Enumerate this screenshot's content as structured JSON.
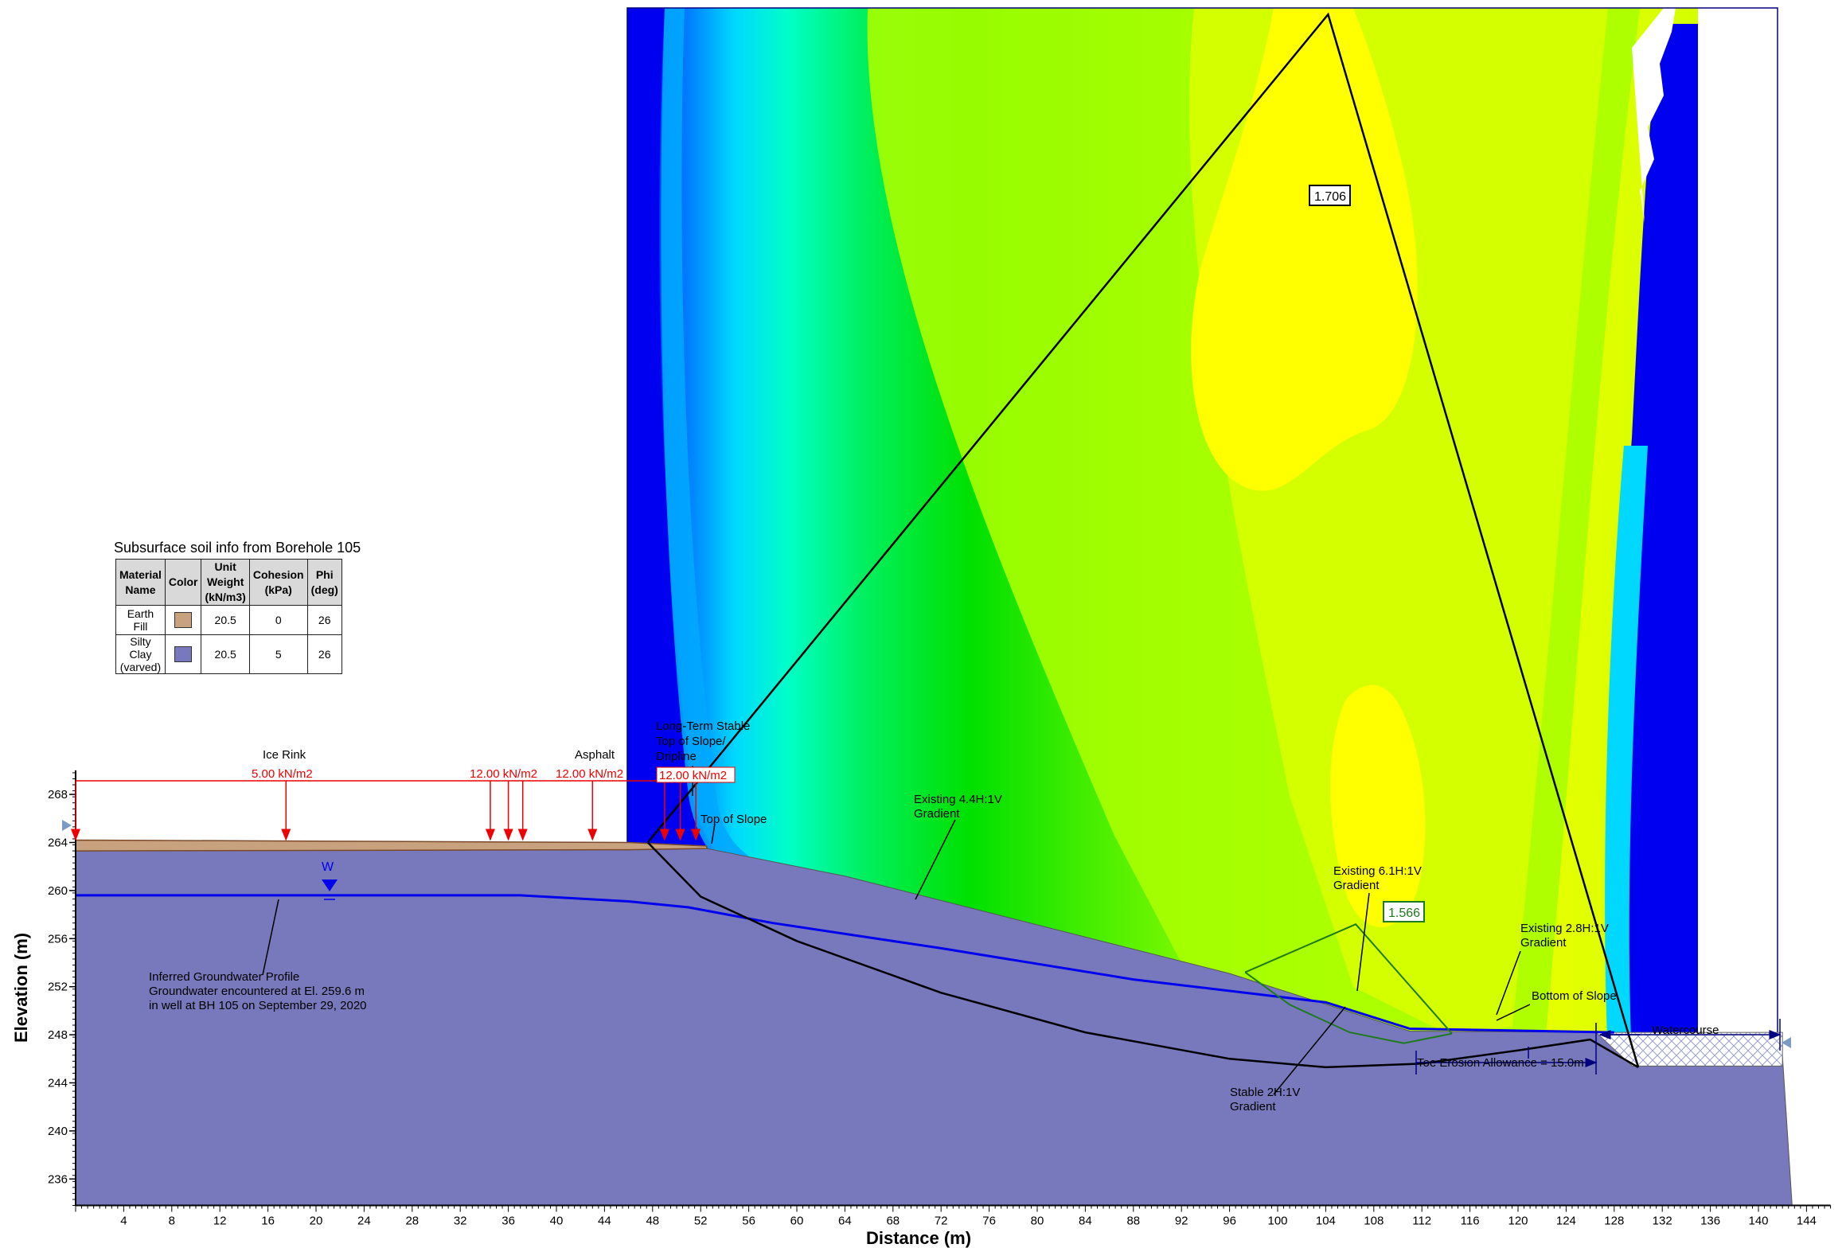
{
  "legend": {
    "title": "Subsurface soil info from Borehole 105",
    "headers": [
      "Material Name",
      "Color",
      "Unit Weight (kN/m3)",
      "Cohesion (kPa)",
      "Phi (deg)"
    ],
    "rows": [
      {
        "name": "Earth Fill",
        "color": "#c8a27e",
        "unit_weight": "20.5",
        "cohesion": "0",
        "phi": "26"
      },
      {
        "name": "Silty Clay (varved)",
        "color": "#7878bc",
        "unit_weight": "20.5",
        "cohesion": "5",
        "phi": "26"
      }
    ]
  },
  "axes": {
    "xlabel": "Distance (m)",
    "ylabel": "Elevation (m)",
    "x_ticks": [
      4,
      8,
      12,
      16,
      20,
      24,
      28,
      32,
      36,
      40,
      44,
      48,
      52,
      56,
      60,
      64,
      68,
      72,
      76,
      80,
      84,
      88,
      92,
      96,
      100,
      104,
      108,
      112,
      116,
      120,
      124,
      128,
      132,
      136,
      140,
      144
    ],
    "y_ticks": [
      236,
      240,
      244,
      248,
      252,
      256,
      260,
      264,
      268
    ],
    "xlim": [
      0,
      146
    ],
    "ylim": [
      233.8,
      270
    ]
  },
  "labels": {
    "ice_rink": "Ice Rink",
    "ice_rink_load": "5.00 kN/m2",
    "load_12a": "12.00 kN/m2",
    "asphalt": "Asphalt",
    "load_12b": "12.00 kN/m2",
    "load_12c": "12.00 kN/m2",
    "long_term_1": "Long-Term Stable",
    "long_term_2": "Top of Slope/",
    "long_term_3": "Dripline",
    "top_of_slope": "Top of Slope",
    "existing44_1": "Existing 4.4H:1V",
    "existing44_2": "Gradient",
    "existing61_1": "Existing 6.1H:1V",
    "existing61_2": "Gradient",
    "existing_right_1": "Existing 2.8H:1V",
    "existing_right_2": "Gradient",
    "bottom_of_slope": "Bottom of Slope",
    "watercourse": "Watercourse",
    "toe_erosion": "Toe Erosion Allowance = 15.0m",
    "stable2h_1": "Stable 2H:1V",
    "stable2h_2": "Gradient",
    "gw_1": "Inferred Groundwater Profile",
    "gw_2": "Groundwater encountered at El. 259.6 m",
    "gw_3": "in well at BH 105 on September 29, 2020",
    "w_marker": "W",
    "fs_global": "1.706",
    "fs_local": "1.566"
  },
  "colors": {
    "fill": "#c8a27e",
    "clay": "#7878bc",
    "water_line": "#0000ee",
    "load_arrow": "#ee0000",
    "fs_local_line": "#1d7a1d"
  },
  "contour_colors": [
    "#0000f0",
    "#0070ff",
    "#00d8ff",
    "#00ffc8",
    "#00f060",
    "#00e000",
    "#50f000",
    "#a8ff00",
    "#d4ff00",
    "#ffff00"
  ]
}
